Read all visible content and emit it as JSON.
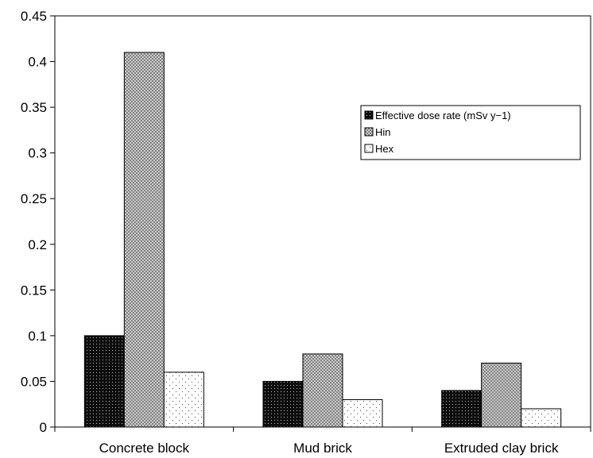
{
  "chart_data": {
    "type": "bar",
    "title": "",
    "xlabel": "",
    "ylabel": "",
    "categories": [
      "Concrete block",
      "Mud brick",
      "Extruded clay brick"
    ],
    "series": [
      {
        "name": "Effective dose rate (mSv y−1)",
        "values": [
          0.1,
          0.05,
          0.04
        ],
        "pattern": "dense-dots",
        "color": "#111111"
      },
      {
        "name": "Hin",
        "values": [
          0.41,
          0.08,
          0.07
        ],
        "pattern": "crosshatch",
        "color": "#8a8a8a"
      },
      {
        "name": "Hex",
        "values": [
          0.06,
          0.03,
          0.02
        ],
        "pattern": "sparse-dots",
        "color": "#ffffff"
      }
    ],
    "ylim": [
      0,
      0.45
    ],
    "yticks": [
      "0",
      "0.05",
      "0.1",
      "0.15",
      "0.2",
      "0.25",
      "0.3",
      "0.35",
      "0.4",
      "0.45"
    ],
    "grid": false,
    "legend_position": "right, upper-middle"
  }
}
